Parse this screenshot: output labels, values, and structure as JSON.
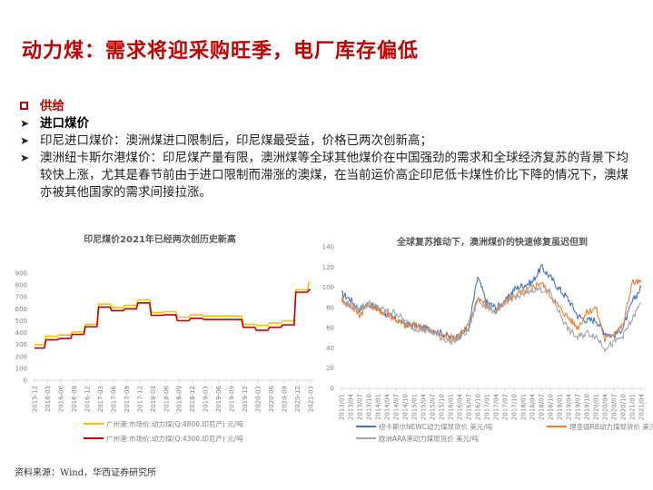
{
  "page": {
    "title": "动力煤：需求将迎采购旺季，电厂库存偏低"
  },
  "bullets": {
    "section": "供给",
    "subsection": "进口煤价",
    "items": [
      "印尼进口煤价：澳洲煤进口限制后，印尼煤最受益，价格已两次创新高；",
      "澳洲纽卡斯尔港煤价：印尼煤产量有限，澳洲煤等全球其他煤价在中国强劲的需求和全球经济复苏的背景下均较快上涨，尤其是春节前由于进口限制而滞涨的澳煤，在当前运价高企印尼低卡煤性价比下降的情况下，澳煤亦被其他国家的需求间接拉涨。"
    ]
  },
  "source": "资料来源：Wind，华西证券研究所",
  "chart_data": [
    {
      "type": "line",
      "title": "印尼煤价2021年已经两次创历史新高",
      "xlabel": "",
      "ylabel": "",
      "ylim": [
        0,
        900
      ],
      "yticks": [
        0,
        100,
        200,
        300,
        400,
        500,
        600,
        700,
        800,
        900
      ],
      "categories": [
        "2015-12",
        "2016-03",
        "2016-06",
        "2016-09",
        "2016-12",
        "2017-03",
        "2017-06",
        "2017-09",
        "2017-12",
        "2018-03",
        "2018-06",
        "2018-09",
        "2018-12",
        "2019-03",
        "2019-06",
        "2019-09",
        "2019-12",
        "2020-03",
        "2020-06",
        "2020-09",
        "2020-12",
        "2021-03"
      ],
      "legend_position": "bottom",
      "grid": false,
      "series": [
        {
          "name": "广州港:市场价:动力煤(Q:4800,印尼产) 元/吨",
          "color": "#ffc000",
          "values": [
            300,
            370,
            380,
            405,
            470,
            640,
            610,
            630,
            675,
            570,
            575,
            530,
            550,
            540,
            540,
            540,
            470,
            460,
            480,
            500,
            760,
            820
          ]
        },
        {
          "name": "广州港:市场价:动力煤(Q:4300,印尼产) 元/吨",
          "color": "#c00000",
          "values": [
            270,
            340,
            350,
            385,
            450,
            615,
            585,
            600,
            650,
            545,
            550,
            500,
            520,
            510,
            510,
            510,
            445,
            420,
            445,
            465,
            740,
            760
          ]
        }
      ]
    },
    {
      "type": "line",
      "title": "全球复苏推动下，澳洲煤价的快速修复虽迟但到",
      "xlabel": "",
      "ylabel": "",
      "ylim": [
        0,
        140
      ],
      "yticks": [
        0,
        20,
        40,
        60,
        80,
        100,
        120,
        140
      ],
      "categories": [
        "2013/01",
        "2013/04",
        "2013/07",
        "2013/10",
        "2014/01",
        "2014/04",
        "2014/07",
        "2014/10",
        "2015/01",
        "2015/04",
        "2015/07",
        "2015/10",
        "2016/01",
        "2016/04",
        "2016/07",
        "2016/10",
        "2017/01",
        "2017/04",
        "2017/07",
        "2017/10",
        "2018/01",
        "2018/04",
        "2018/07",
        "2018/10",
        "2019/01",
        "2019/04",
        "2019/07",
        "2019/10",
        "2020/01",
        "2020/04",
        "2020/07",
        "2020/10",
        "2021/01",
        "2021/04"
      ],
      "legend_position": "bottom",
      "grid": false,
      "series": [
        {
          "name": "纽卡斯尔NEWC动力煤现货价 美元/吨",
          "color": "#4472c4",
          "values": [
            94,
            88,
            78,
            84,
            78,
            73,
            68,
            64,
            62,
            60,
            58,
            55,
            50,
            52,
            60,
            110,
            85,
            80,
            85,
            98,
            102,
            105,
            120,
            110,
            98,
            88,
            72,
            67,
            68,
            55,
            52,
            60,
            85,
            100
          ]
        },
        {
          "name": "理查德RB动力煤现货价 美元/吨",
          "color": "#ed7d31",
          "values": [
            88,
            82,
            73,
            83,
            78,
            74,
            68,
            62,
            63,
            60,
            56,
            52,
            50,
            53,
            62,
            90,
            82,
            75,
            85,
            92,
            95,
            100,
            105,
            92,
            80,
            70,
            60,
            75,
            80,
            48,
            55,
            62,
            105,
            105
          ]
        },
        {
          "name": "欧洲ARA港动力煤现货价 美元/吨",
          "color": "#a5a5a5",
          "values": [
            86,
            82,
            80,
            84,
            80,
            76,
            75,
            66,
            60,
            58,
            55,
            50,
            46,
            50,
            58,
            88,
            80,
            76,
            84,
            90,
            92,
            98,
            98,
            95,
            75,
            58,
            50,
            55,
            52,
            40,
            45,
            52,
            68,
            85
          ]
        }
      ]
    }
  ]
}
